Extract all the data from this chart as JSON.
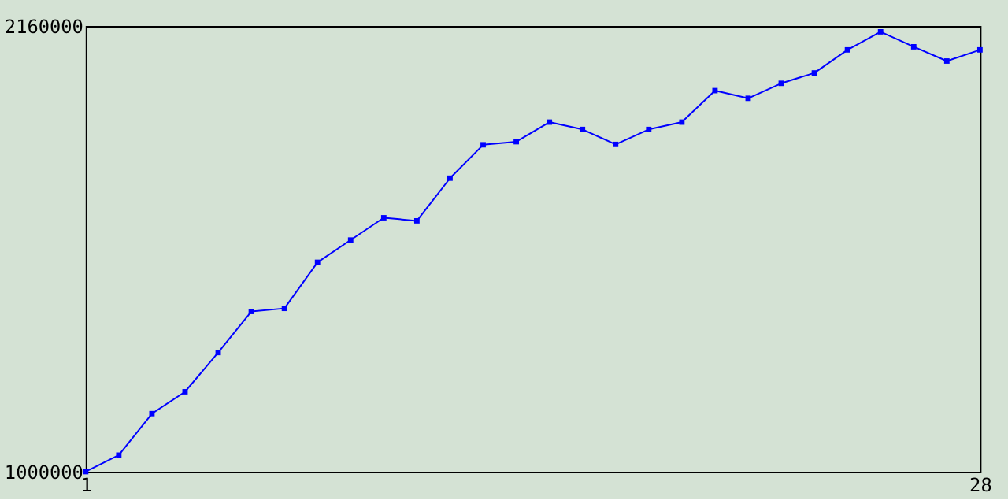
{
  "chart_data": {
    "type": "line",
    "x": [
      1,
      2,
      3,
      4,
      5,
      6,
      7,
      8,
      9,
      10,
      11,
      12,
      13,
      14,
      15,
      16,
      17,
      18,
      19,
      20,
      21,
      22,
      23,
      24,
      25,
      26,
      27,
      28
    ],
    "series": [
      {
        "color": "#0000ff",
        "values": [
          1000000,
          1043000,
          1151000,
          1208000,
          1310000,
          1417000,
          1425000,
          1545000,
          1603000,
          1661000,
          1653000,
          1764000,
          1851000,
          1859000,
          1910000,
          1891000,
          1852000,
          1891000,
          1910000,
          1992000,
          1972000,
          2011000,
          2038000,
          2098000,
          2145000,
          2106000,
          2069000,
          2098000
        ]
      }
    ],
    "xlim": [
      1,
      28
    ],
    "xticks": [
      1,
      28
    ],
    "ylim": [
      1000000,
      2160000
    ],
    "yticks": [
      1000000,
      2160000
    ],
    "grid": false,
    "marker": "square",
    "line_style": "solid"
  }
}
